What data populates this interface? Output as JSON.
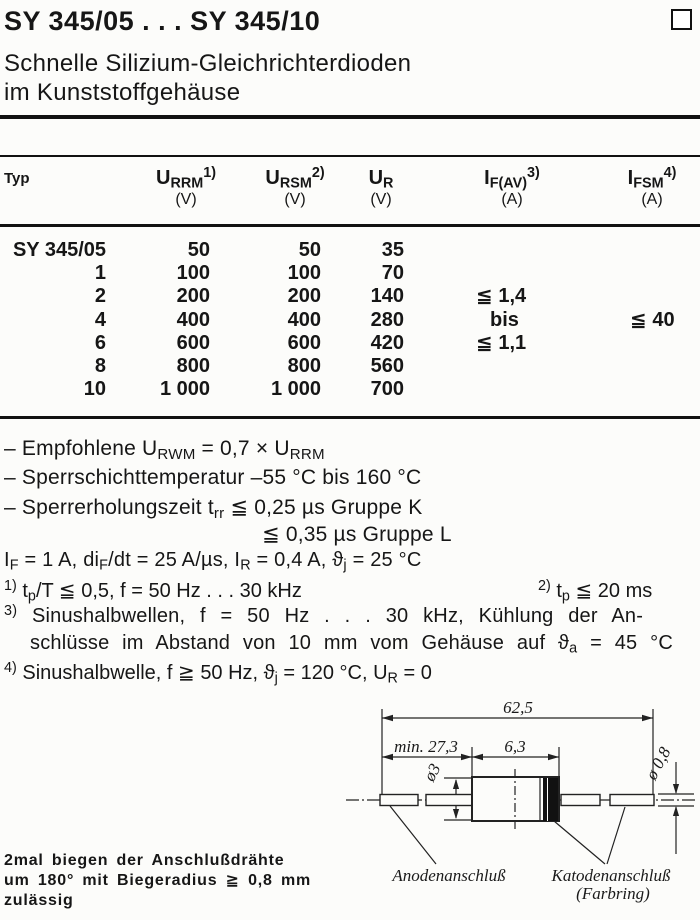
{
  "header": {
    "title": "SY 345/05 . . . SY 345/10",
    "subtitle_line1": "Schnelle Silizium-Gleichrichterdioden",
    "subtitle_line2": "im Kunststoffgehäuse"
  },
  "table": {
    "columns": {
      "typ": "Typ",
      "urrm": [
        [
          "t",
          "U"
        ],
        [
          "sub",
          "RRM"
        ],
        [
          "sup",
          "1)"
        ]
      ],
      "urrm_unit": "(V)",
      "ursm": [
        [
          "t",
          "U"
        ],
        [
          "sub",
          "RSM"
        ],
        [
          "sup",
          "2)"
        ]
      ],
      "ursm_unit": "(V)",
      "ur": [
        [
          "t",
          "U"
        ],
        [
          "sub",
          "R"
        ]
      ],
      "ur_unit": "(V)",
      "ifav": [
        [
          "t",
          "I"
        ],
        [
          "sub",
          "F(AV)"
        ],
        [
          "sup",
          "3)"
        ]
      ],
      "ifav_unit": "(A)",
      "ifsm": [
        [
          "t",
          "I"
        ],
        [
          "sub",
          "FSM"
        ],
        [
          "sup",
          "4)"
        ]
      ],
      "ifsm_unit": "(A)"
    },
    "rows": [
      {
        "typ": "SY 345/05",
        "urrm": "50",
        "ursm": "50",
        "ur": "35",
        "ifav": "",
        "ifsm": ""
      },
      {
        "typ": "1",
        "urrm": "100",
        "ursm": "100",
        "ur": "70",
        "ifav": "",
        "ifsm": ""
      },
      {
        "typ": "2",
        "urrm": "200",
        "ursm": "200",
        "ur": "140",
        "ifav": "≦ 1,4",
        "ifsm": ""
      },
      {
        "typ": "4",
        "urrm": "400",
        "ursm": "400",
        "ur": "280",
        "ifav": "bis",
        "ifsm": "≦ 40"
      },
      {
        "typ": "6",
        "urrm": "600",
        "ursm": "600",
        "ur": "420",
        "ifav": "≦ 1,1",
        "ifsm": ""
      },
      {
        "typ": "8",
        "urrm": "800",
        "ursm": "800",
        "ur": "560",
        "ifav": "",
        "ifsm": ""
      },
      {
        "typ": "10",
        "urrm": "1 000",
        "ursm": "1 000",
        "ur": "700",
        "ifav": "",
        "ifsm": ""
      }
    ]
  },
  "notes": {
    "n1": [
      [
        "t",
        "– Empfohlene U"
      ],
      [
        "sub",
        "RWM"
      ],
      [
        "t",
        " = 0,7 × U"
      ],
      [
        "sub",
        "RRM"
      ]
    ],
    "n2": [
      [
        "t",
        "– Sperrschichttemperatur –55 °C bis 160 °C"
      ]
    ],
    "n3": [
      [
        "t",
        "– Sperrerholungszeit t"
      ],
      [
        "sub",
        "rr"
      ],
      [
        "t",
        " ≦ 0,25 µs Gruppe K"
      ]
    ],
    "n4": [
      [
        "t",
        "≦ 0,35 µs Gruppe L"
      ]
    ],
    "n5": [
      [
        "t",
        "I"
      ],
      [
        "sub",
        "F"
      ],
      [
        "t",
        " = 1 A, di"
      ],
      [
        "sub",
        "F"
      ],
      [
        "t",
        "/dt = 25 A/µs, I"
      ],
      [
        "sub",
        "R"
      ],
      [
        "t",
        " = 0,4 A, ϑ"
      ],
      [
        "sub",
        "j"
      ],
      [
        "t",
        " = 25 °C"
      ]
    ]
  },
  "footnotes": {
    "fn1": [
      [
        "sup",
        "1)"
      ],
      [
        "t",
        " t"
      ],
      [
        "sub",
        "p"
      ],
      [
        "t",
        "/T ≦ 0,5, f = 50 Hz . . . 30 kHz"
      ]
    ],
    "fn2": [
      [
        "sup",
        "2)"
      ],
      [
        "t",
        " t"
      ],
      [
        "sub",
        "p"
      ],
      [
        "t",
        " ≦ 20 ms"
      ]
    ],
    "fn3a": [
      [
        "sup",
        "3)"
      ],
      [
        "t",
        " Sinushalbwellen, f = 50 Hz . . . 30 kHz, Kühlung der An-"
      ]
    ],
    "fn3b": [
      [
        "t",
        "schlüsse im Abstand von 10 mm vom Gehäuse auf ϑ"
      ],
      [
        "sub",
        "a"
      ],
      [
        "t",
        " = 45 °C"
      ]
    ],
    "fn4": [
      [
        "sup",
        "4)"
      ],
      [
        "t",
        " Sinushalbwelle, f ≧ 50 Hz, ϑ"
      ],
      [
        "sub",
        "j"
      ],
      [
        "t",
        " = 120 °C, U"
      ],
      [
        "sub",
        "R"
      ],
      [
        "t",
        " = 0"
      ]
    ]
  },
  "bend_note": {
    "line1": "2mal biegen der Anschlußdrähte",
    "line2": "um 180° mit Biegeradius ≧ 0,8 mm",
    "line3": "zulässig"
  },
  "diagram": {
    "dim_total": "62,5",
    "dim_lead": "min. 27,3",
    "dim_body": "6,3",
    "dim_body_dia": "ø3",
    "dim_wire_dia": "ø 0,8",
    "anode_label": "Anodenanschluß",
    "cathode_label": "Katodenanschluß",
    "cathode_sublabel": "(Farbring)"
  }
}
